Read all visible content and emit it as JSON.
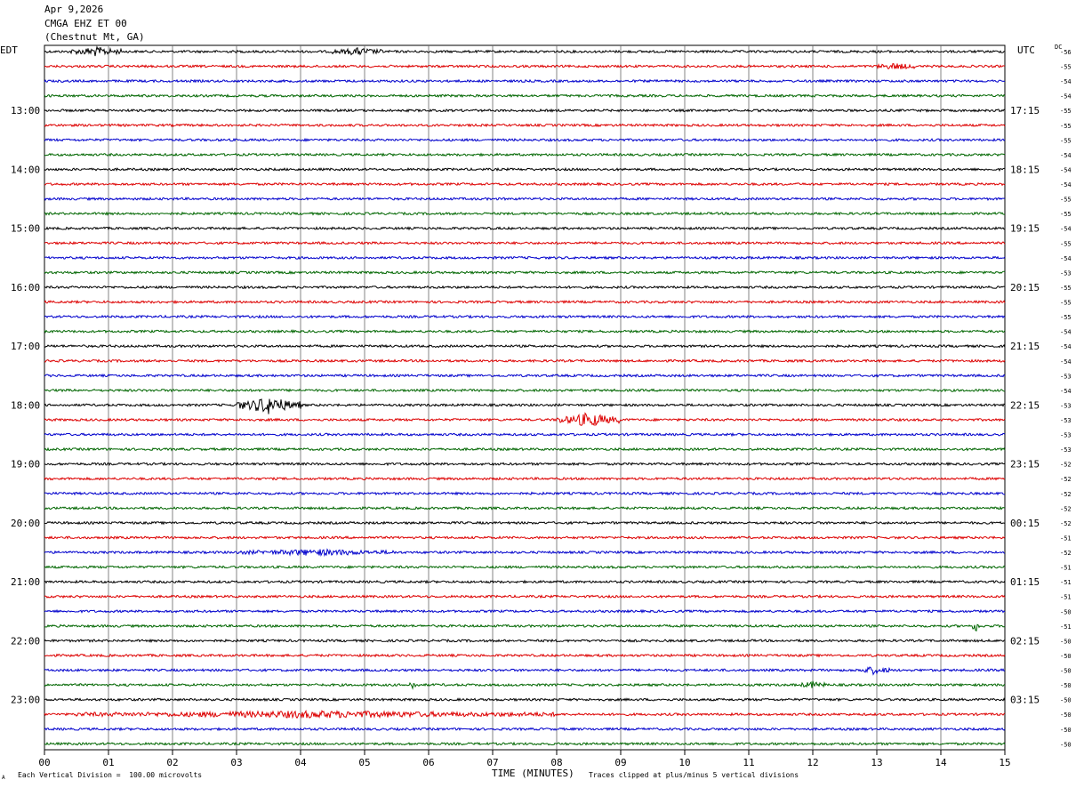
{
  "header": {
    "date": "Apr 9,2026",
    "channel": "CMGA EHZ ET 00",
    "location": "(Chestnut Mt, GA)"
  },
  "left_tz": "EDT",
  "right_tz": "UTC",
  "dc_label": "DC",
  "footer": {
    "scale_note": "Each Vertical Division =  100.00 microvolts",
    "xaxis_title": "TIME (MINUTES)",
    "clip_note": "Traces clipped at plus/minus 5 vertical divisions",
    "corner_mark": "A"
  },
  "chart_data": {
    "type": "seismogram",
    "x_ticks": [
      "00",
      "01",
      "02",
      "03",
      "04",
      "05",
      "06",
      "07",
      "08",
      "09",
      "10",
      "11",
      "12",
      "13",
      "14",
      "15"
    ],
    "xlim": [
      0,
      15
    ],
    "trace_colors": [
      "#000000",
      "#dd0000",
      "#0000cc",
      "#006600"
    ],
    "left_hour_labels": [
      "13:00",
      "14:00",
      "15:00",
      "16:00",
      "17:00",
      "18:00",
      "19:00",
      "20:00",
      "21:00",
      "22:00",
      "23:00"
    ],
    "right_hour_labels": [
      "17:15",
      "18:15",
      "19:15",
      "20:15",
      "21:15",
      "22:15",
      "23:15",
      "00:15",
      "01:15",
      "02:15",
      "03:15"
    ],
    "dc_offsets": [
      -56,
      -55,
      -54,
      -54,
      -55,
      -55,
      -55,
      -54,
      -54,
      -54,
      -55,
      -55,
      -54,
      -55,
      -54,
      -53,
      -55,
      -55,
      -55,
      -54,
      -54,
      -54,
      -53,
      -54,
      -53,
      -53,
      -53,
      -53,
      -52,
      -52,
      -52,
      -52,
      -52,
      -51,
      -52,
      -51,
      -51,
      -51,
      -50,
      -51,
      -50,
      -50,
      -50,
      -50,
      -50,
      -50,
      -50,
      -50
    ],
    "events": [
      {
        "trace": 0,
        "start_min": 0.4,
        "end_min": 1.2,
        "amp": 2.2
      },
      {
        "trace": 0,
        "start_min": 4.5,
        "end_min": 5.3,
        "amp": 1.6
      },
      {
        "trace": 1,
        "start_min": 13.0,
        "end_min": 13.6,
        "amp": 1.4
      },
      {
        "trace": 24,
        "start_min": 3.0,
        "end_min": 4.0,
        "amp": 4.5
      },
      {
        "trace": 25,
        "start_min": 8.0,
        "end_min": 9.0,
        "amp": 3.5
      },
      {
        "trace": 34,
        "start_min": 3.0,
        "end_min": 5.5,
        "amp": 1.3
      },
      {
        "trace": 39,
        "start_min": 14.5,
        "end_min": 14.6,
        "amp": 3.0
      },
      {
        "trace": 42,
        "start_min": 12.7,
        "end_min": 13.2,
        "amp": 1.8
      },
      {
        "trace": 43,
        "start_min": 11.8,
        "end_min": 12.2,
        "amp": 1.5
      },
      {
        "trace": 43,
        "start_min": 5.7,
        "end_min": 5.8,
        "amp": 2.5
      },
      {
        "trace": 45,
        "start_min": 0.5,
        "end_min": 8.0,
        "amp": 1.5
      }
    ]
  }
}
